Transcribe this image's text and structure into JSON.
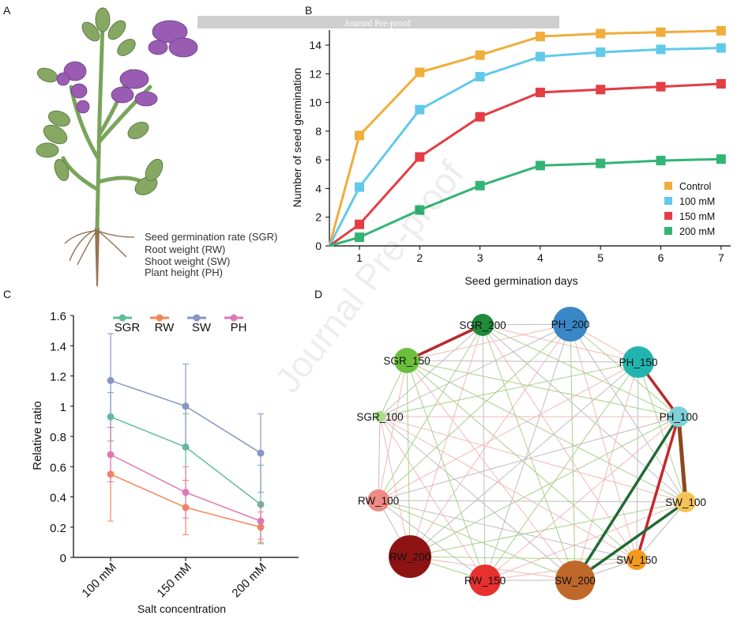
{
  "banner": "Journal Pre-proof",
  "watermark": "Journal Pre-proof",
  "panels": {
    "a": "A",
    "b": "B",
    "c": "C",
    "d": "D"
  },
  "panel_a": {
    "traits": [
      "Seed germination rate (SGR)",
      "Root weight (RW)",
      "Shoot weight (SW)",
      "Plant height (PH)"
    ]
  },
  "chart_data": [
    {
      "type": "line",
      "panel": "B",
      "xlabel": "Seed germination days",
      "ylabel": "Number of seed germination",
      "x": [
        1,
        2,
        3,
        4,
        5,
        6,
        7
      ],
      "xticks": [
        "1",
        "2",
        "3",
        "4",
        "5",
        "6",
        "7"
      ],
      "yticks": [
        "0",
        "2",
        "4",
        "6",
        "8",
        "10",
        "12",
        "14"
      ],
      "ylim": [
        0,
        15
      ],
      "legend_position": "bottom-right",
      "series": [
        {
          "name": "Control",
          "color": "#f0ad3c",
          "values": [
            7.7,
            12.1,
            13.3,
            14.6,
            14.8,
            14.9,
            15.0
          ]
        },
        {
          "name": "100 mM",
          "color": "#62c9ea",
          "values": [
            4.1,
            9.5,
            11.8,
            13.2,
            13.5,
            13.7,
            13.8
          ]
        },
        {
          "name": "150 mM",
          "color": "#e23e44",
          "values": [
            1.5,
            6.2,
            9.0,
            10.7,
            10.9,
            11.1,
            11.3
          ]
        },
        {
          "name": "200 mM",
          "color": "#33b475",
          "values": [
            0.6,
            2.5,
            4.2,
            5.6,
            5.75,
            5.95,
            6.05
          ]
        }
      ]
    },
    {
      "type": "line",
      "panel": "C",
      "xlabel": "Salt concentration",
      "ylabel": "Relative ratio",
      "categories": [
        "100 mM",
        "150 mM",
        "200 mM"
      ],
      "yticks": [
        "0",
        "0.2",
        "0.4",
        "0.6",
        "0.8",
        "1",
        "1.2",
        "1.4",
        "1.6"
      ],
      "ylim": [
        0,
        1.6
      ],
      "legend_position": "top",
      "series": [
        {
          "name": "SGR",
          "color": "#5fbf96",
          "values": [
            0.93,
            0.73,
            0.35
          ],
          "error": [
            0.16,
            0.22,
            0.26
          ]
        },
        {
          "name": "RW",
          "color": "#f3865a",
          "values": [
            0.55,
            0.33,
            0.2
          ],
          "error": [
            0.31,
            0.18,
            0.1
          ]
        },
        {
          "name": "SW",
          "color": "#8795c6",
          "values": [
            1.17,
            1.0,
            0.69
          ],
          "error": [
            0.31,
            0.28,
            0.26
          ]
        },
        {
          "name": "PH",
          "color": "#dc7ab4",
          "values": [
            0.68,
            0.43,
            0.24
          ],
          "error": [
            0.18,
            0.17,
            0.12
          ]
        }
      ]
    },
    {
      "type": "network",
      "panel": "D",
      "nodes": [
        {
          "id": "SGR_200",
          "color": "#1f8a3a"
        },
        {
          "id": "PH_200",
          "color": "#3a87c8"
        },
        {
          "id": "PH_150",
          "color": "#22b5b0"
        },
        {
          "id": "PH_100",
          "color": "#7fd0d9"
        },
        {
          "id": "SW_100",
          "color": "#f6c35a"
        },
        {
          "id": "SW_150",
          "color": "#f39a1e"
        },
        {
          "id": "SW_200",
          "color": "#c0672a"
        },
        {
          "id": "RW_150",
          "color": "#e8302e"
        },
        {
          "id": "RW_200",
          "color": "#8e1414"
        },
        {
          "id": "RW_100",
          "color": "#ef8a85"
        },
        {
          "id": "SGR_100",
          "color": "#a9dc86"
        },
        {
          "id": "SGR_150",
          "color": "#6cbf3d"
        }
      ],
      "strong_edges": [
        {
          "from": "SGR_200",
          "to": "SGR_150",
          "color": "#b82a2a"
        },
        {
          "from": "PH_150",
          "to": "PH_100",
          "color": "#b82a2a"
        },
        {
          "from": "PH_100",
          "to": "SW_100",
          "color": "#8b4a1e"
        },
        {
          "from": "PH_100",
          "to": "SW_150",
          "color": "#c7262e"
        },
        {
          "from": "PH_100",
          "to": "SW_200",
          "color": "#1f6b35"
        },
        {
          "from": "SW_100",
          "to": "SW_200",
          "color": "#1f6b35"
        }
      ],
      "weak_edge_colors": [
        "#bdbdbd",
        "#f2b8b8",
        "#a8d08a"
      ]
    }
  ]
}
